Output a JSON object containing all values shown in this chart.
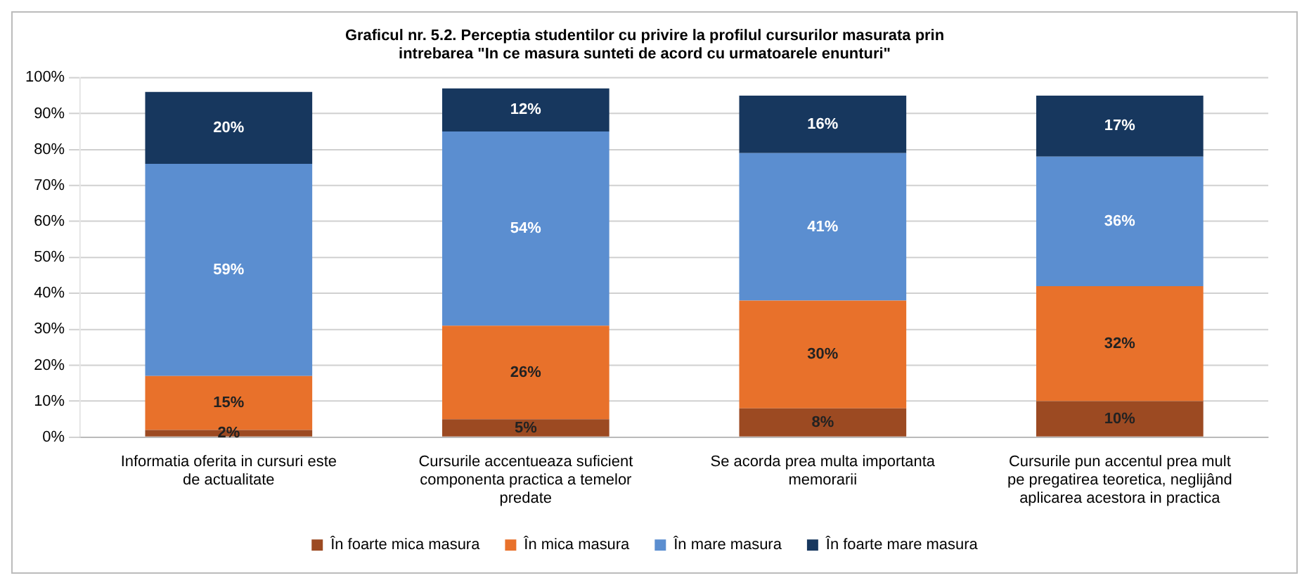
{
  "chart_data": {
    "type": "bar",
    "stacked": true,
    "title": "Graficul nr. 5.2. Perceptia studentilor cu privire la profilul cursurilor masurata prin intrebarea \"In ce masura sunteti de acord cu urmatoarele enunturi\"",
    "categories": [
      "Informatia oferita in cursuri este de actualitate",
      "Cursurile accentueaza suficient componenta practica a temelor predate",
      "Se acorda prea multa importanta memorarii",
      "Cursurile pun accentul prea mult pe pregatirea teoretica, neglijând aplicarea acestora in practica"
    ],
    "series": [
      {
        "name": "În foarte mica masura",
        "color": "#9c4a22",
        "values": [
          2,
          5,
          8,
          10
        ],
        "value_labels": [
          "2%",
          "5%",
          "8%",
          "10%"
        ]
      },
      {
        "name": "În mica masura",
        "color": "#e8712b",
        "values": [
          15,
          26,
          30,
          32
        ],
        "value_labels": [
          "15%",
          "26%",
          "30%",
          "32%"
        ]
      },
      {
        "name": "În mare masura",
        "color": "#5b8ed0",
        "values": [
          59,
          54,
          41,
          36
        ],
        "value_labels": [
          "59%",
          "54%",
          "41%",
          "36%"
        ]
      },
      {
        "name": "În foarte mare masura",
        "color": "#17375e",
        "values": [
          20,
          12,
          16,
          17
        ],
        "value_labels": [
          "20%",
          "12%",
          "16%",
          "17%"
        ]
      }
    ],
    "ylim": [
      0,
      100
    ],
    "yticks": [
      {
        "value": 0,
        "label": "0%"
      },
      {
        "value": 10,
        "label": "10%"
      },
      {
        "value": 20,
        "label": "20%"
      },
      {
        "value": 30,
        "label": "30%"
      },
      {
        "value": 40,
        "label": "40%"
      },
      {
        "value": 50,
        "label": "50%"
      },
      {
        "value": 60,
        "label": "60%"
      },
      {
        "value": 70,
        "label": "70%"
      },
      {
        "value": 80,
        "label": "80%"
      },
      {
        "value": 90,
        "label": "90%"
      },
      {
        "value": 100,
        "label": "100%"
      }
    ],
    "grid": "y",
    "legend": "bottom"
  }
}
